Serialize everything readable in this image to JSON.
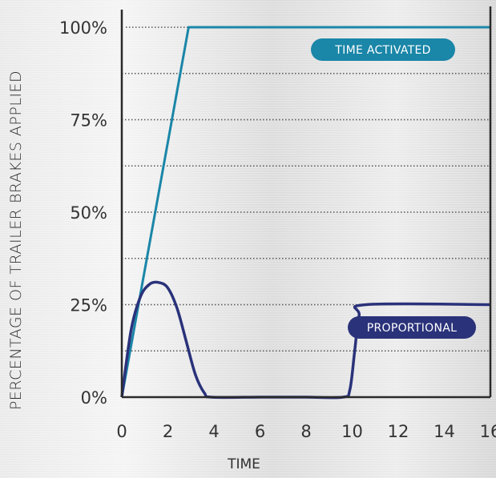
{
  "chart_data": {
    "type": "line",
    "title": "",
    "xlabel": "TIME",
    "ylabel": "PERCENTAGE OF TRAILER BRAKES APPLIED",
    "xlim": [
      0,
      16
    ],
    "ylim": [
      0,
      100
    ],
    "x_ticks": [
      "0",
      "2",
      "4",
      "6",
      "8",
      "10",
      "12",
      "14",
      "16"
    ],
    "y_ticks": [
      "0%",
      "25%",
      "50%",
      "75%",
      "100%"
    ],
    "grid": "horizontal dotted",
    "series": [
      {
        "name": "TIME ACTIVATED",
        "color": "#1a86a8",
        "x": [
          0,
          2.9,
          16
        ],
        "y": [
          0,
          100,
          100
        ]
      },
      {
        "name": "PROPORTIONAL",
        "color": "#2a327a",
        "x": [
          0,
          0.4,
          0.8,
          1.2,
          1.6,
          2.0,
          2.4,
          2.8,
          3.2,
          3.6,
          3.9,
          6,
          8,
          9.6,
          9.9,
          10.1,
          10.3,
          10.6,
          16
        ],
        "y": [
          0,
          18,
          27,
          30.5,
          31,
          29.5,
          24,
          15,
          6,
          1,
          0,
          0,
          0,
          0,
          2,
          12,
          22,
          25,
          25
        ]
      }
    ]
  }
}
